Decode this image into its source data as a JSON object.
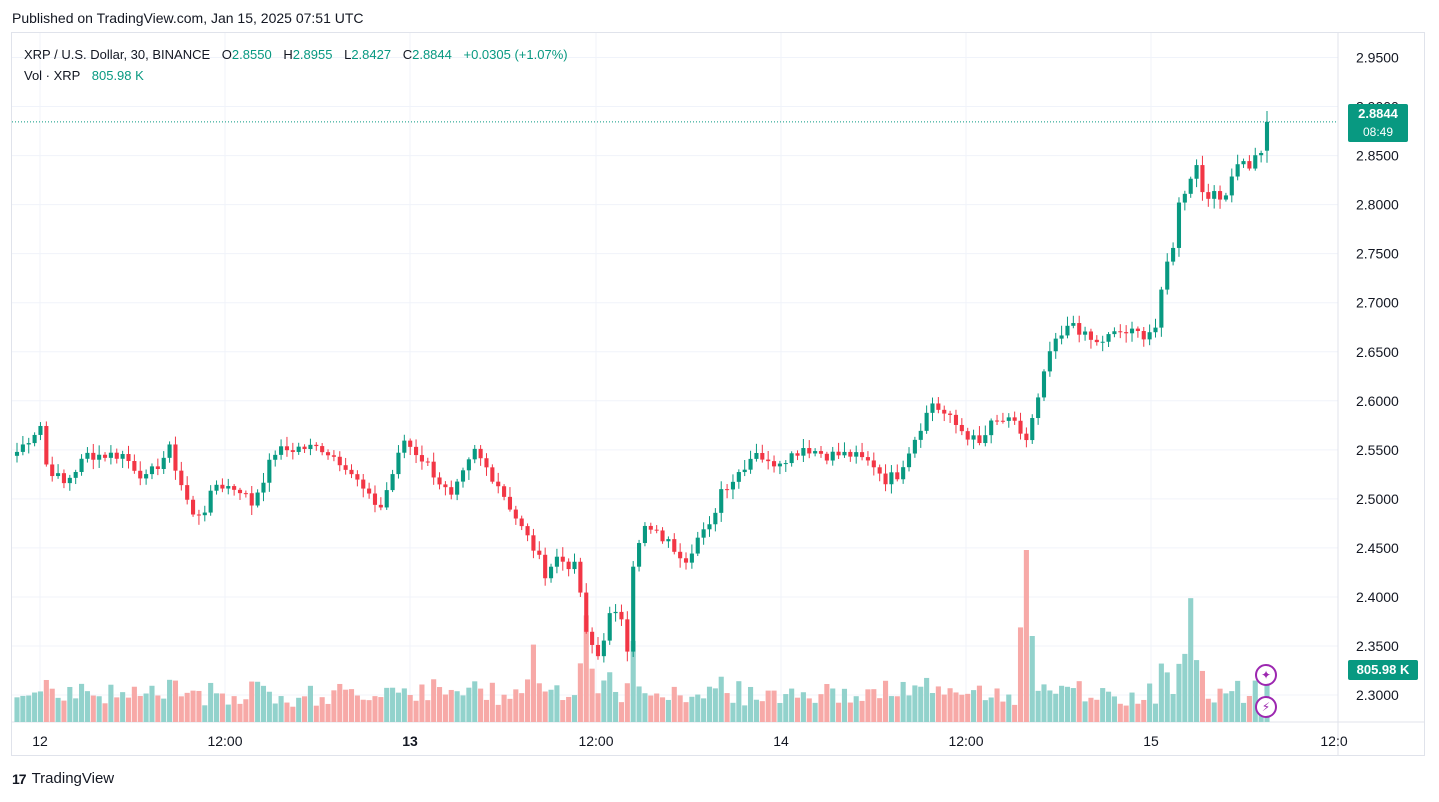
{
  "header": {
    "published": "Published on TradingView.com, Jan 15, 2025 07:51 UTC"
  },
  "legend": {
    "symbol": "XRP / U.S. Dollar, 30, BINANCE",
    "o_label": "O",
    "o_value": "2.8550",
    "h_label": "H",
    "h_value": "2.8955",
    "l_label": "L",
    "l_value": "2.8427",
    "c_label": "C",
    "c_value": "2.8844",
    "change": "+0.0305 (+1.07%)",
    "vol_label": "Vol · XRP",
    "vol_value": "805.98 K"
  },
  "price_label": {
    "price": "2.8844",
    "countdown": "08:49"
  },
  "volume_label": "805.98 K",
  "footer": {
    "brand": "TradingView",
    "logo": "17"
  },
  "colors": {
    "up": "#089981",
    "down": "#f23645",
    "vol_up": "#92d2cc",
    "vol_down": "#f7a9a7",
    "grid": "#f0f3fa",
    "axis_text": "#131722"
  },
  "chart_data": {
    "type": "candlestick",
    "title": "XRP / U.S. Dollar, 30, BINANCE",
    "interval": "30",
    "price_axis": {
      "range": [
        2.2725,
        2.975
      ],
      "ticks": [
        "2.9500",
        "2.9000",
        "2.8500",
        "2.8000",
        "2.7500",
        "2.7000",
        "2.6500",
        "2.6000",
        "2.5500",
        "2.5000",
        "2.4500",
        "2.4000",
        "2.3500",
        "2.3000"
      ]
    },
    "time_axis": {
      "labels": [
        "12",
        "12:00",
        "13",
        "12:00",
        "14",
        "12:00",
        "15",
        "12:0"
      ],
      "bold": [
        "13"
      ]
    },
    "last_price": 2.8844,
    "close_path_anchors": [
      [
        0,
        2.548
      ],
      [
        4,
        2.575
      ],
      [
        5,
        2.535
      ],
      [
        8,
        2.515
      ],
      [
        12,
        2.545
      ],
      [
        18,
        2.545
      ],
      [
        22,
        2.52
      ],
      [
        24,
        2.535
      ],
      [
        26,
        2.55
      ],
      [
        28,
        2.515
      ],
      [
        30,
        2.482
      ],
      [
        32,
        2.49
      ],
      [
        34,
        2.515
      ],
      [
        38,
        2.51
      ],
      [
        40,
        2.495
      ],
      [
        44,
        2.548
      ],
      [
        48,
        2.552
      ],
      [
        52,
        2.552
      ],
      [
        56,
        2.535
      ],
      [
        60,
        2.5
      ],
      [
        62,
        2.492
      ],
      [
        66,
        2.56
      ],
      [
        70,
        2.535
      ],
      [
        74,
        2.5
      ],
      [
        78,
        2.548
      ],
      [
        82,
        2.515
      ],
      [
        86,
        2.47
      ],
      [
        88,
        2.45
      ],
      [
        90,
        2.425
      ],
      [
        92,
        2.44
      ],
      [
        95,
        2.43
      ],
      [
        96,
        2.405
      ],
      [
        97,
        2.36
      ],
      [
        99,
        2.34
      ],
      [
        101,
        2.38
      ],
      [
        103,
        2.38
      ],
      [
        104,
        2.35
      ],
      [
        105,
        2.435
      ],
      [
        107,
        2.47
      ],
      [
        110,
        2.46
      ],
      [
        112,
        2.45
      ],
      [
        114,
        2.44
      ],
      [
        116,
        2.46
      ],
      [
        118,
        2.47
      ],
      [
        120,
        2.51
      ],
      [
        122,
        2.52
      ],
      [
        126,
        2.55
      ],
      [
        128,
        2.535
      ],
      [
        132,
        2.545
      ],
      [
        134,
        2.553
      ],
      [
        138,
        2.545
      ],
      [
        142,
        2.545
      ],
      [
        146,
        2.535
      ],
      [
        148,
        2.52
      ],
      [
        150,
        2.525
      ],
      [
        152,
        2.55
      ],
      [
        154,
        2.575
      ],
      [
        156,
        2.598
      ],
      [
        160,
        2.575
      ],
      [
        164,
        2.555
      ],
      [
        166,
        2.575
      ],
      [
        168,
        2.58
      ],
      [
        170,
        2.575
      ],
      [
        172,
        2.56
      ],
      [
        174,
        2.6
      ],
      [
        176,
        2.65
      ],
      [
        178,
        2.665
      ],
      [
        180,
        2.68
      ],
      [
        182,
        2.665
      ],
      [
        184,
        2.658
      ],
      [
        186,
        2.665
      ],
      [
        188,
        2.67
      ],
      [
        192,
        2.668
      ],
      [
        194,
        2.675
      ],
      [
        196,
        2.74
      ],
      [
        197,
        2.76
      ],
      [
        198,
        2.8
      ],
      [
        200,
        2.83
      ],
      [
        201,
        2.84
      ],
      [
        202,
        2.815
      ],
      [
        205,
        2.805
      ],
      [
        206,
        2.815
      ],
      [
        208,
        2.845
      ],
      [
        210,
        2.84
      ],
      [
        212,
        2.855
      ],
      [
        213,
        2.8844
      ]
    ],
    "volume_peaks": [
      {
        "index": 88,
        "relative": 0.45
      },
      {
        "index": 172,
        "relative": 1.0
      },
      {
        "index": 200,
        "relative": 0.72
      },
      {
        "index": 97,
        "relative": 0.62
      }
    ]
  }
}
